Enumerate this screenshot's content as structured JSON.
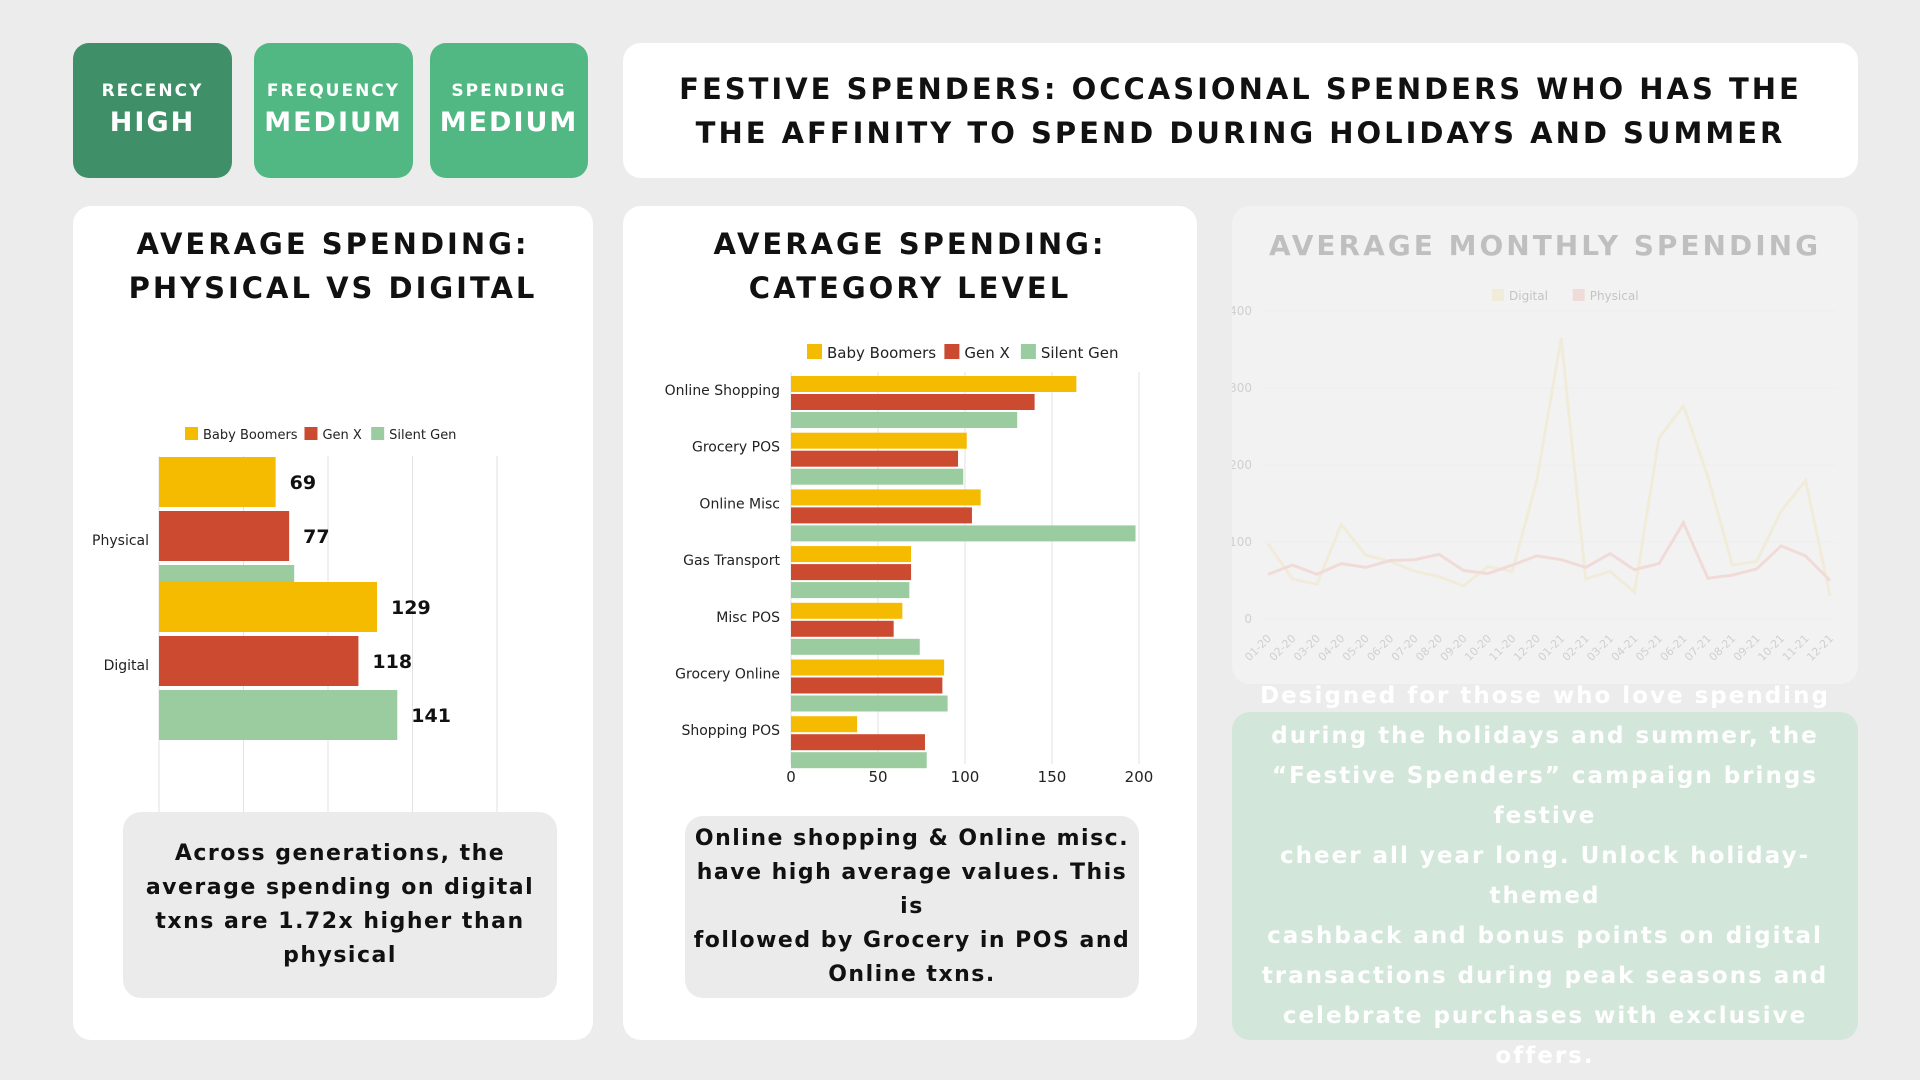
{
  "badges": [
    {
      "label": "RECENCY",
      "value": "HIGH",
      "color": "#3f8f68"
    },
    {
      "label": "FREQUENCY",
      "value": "MEDIUM",
      "color": "#52b883"
    },
    {
      "label": "SPENDING",
      "value": "MEDIUM",
      "color": "#52b883"
    }
  ],
  "header": {
    "line1": "FESTIVE SPENDERS: OCCASIONAL SPENDERS WHO HAS THE",
    "line2": "THE AFFINITY TO SPEND DURING HOLIDAYS AND SUMMER"
  },
  "colors": {
    "baby_boomers": "#f5bb00",
    "gen_x": "#cc4a2f",
    "silent_gen": "#9bcc9f",
    "digital": "#f1d589",
    "physical": "#ef8f80"
  },
  "physical_digital": {
    "title_line1": "AVERAGE SPENDING:",
    "title_line2": "PHYSICAL VS DIGITAL",
    "note": [
      "Across generations, the",
      "average spending on digital",
      "txns are 1.72x higher than",
      "physical"
    ]
  },
  "category_level": {
    "title_line1": "AVERAGE SPENDING:",
    "title_line2": "CATEGORY LEVEL",
    "note": [
      "Online shopping & Online misc.",
      "have high average values. This is",
      "followed by Grocery in POS and",
      "Online txns."
    ]
  },
  "monthly": {
    "title": "AVERAGE MONTHLY SPENDING"
  },
  "promo": {
    "lines": [
      "Designed for those who love spending",
      "during the holidays and summer, the",
      "“Festive Spenders” campaign brings festive",
      "cheer all year long. Unlock holiday-themed",
      "cashback and bonus points on digital",
      "transactions during peak seasons and",
      "celebrate purchases with exclusive offers."
    ]
  },
  "chart_data": [
    {
      "type": "bar",
      "orientation": "horizontal",
      "categories": [
        "Physical",
        "Digital"
      ],
      "series": [
        {
          "name": "Baby Boomers",
          "values": [
            69,
            129
          ]
        },
        {
          "name": "Gen X",
          "values": [
            77,
            118
          ]
        },
        {
          "name": "Silent Gen",
          "values": [
            80,
            141
          ]
        }
      ],
      "xlim": [
        0,
        200
      ],
      "legend": "top",
      "grid": true
    },
    {
      "type": "bar",
      "orientation": "horizontal",
      "categories": [
        "Online Shopping",
        "Grocery POS",
        "Online Misc",
        "Gas Transport",
        "Misc POS",
        "Grocery Online",
        "Shopping POS"
      ],
      "series": [
        {
          "name": "Baby Boomers",
          "values": [
            164,
            101,
            109,
            69,
            64,
            88,
            38
          ]
        },
        {
          "name": "Gen X",
          "values": [
            140,
            96,
            104,
            69,
            59,
            87,
            77
          ]
        },
        {
          "name": "Silent Gen",
          "values": [
            130,
            99,
            198,
            68,
            74,
            90,
            78
          ]
        }
      ],
      "xticks": [
        "0",
        "50",
        "100",
        "150",
        "200"
      ],
      "xlim": [
        0,
        200
      ],
      "legend": "top",
      "grid": true
    },
    {
      "type": "line",
      "x": [
        "01-20",
        "02-20",
        "03-20",
        "04-20",
        "05-20",
        "06-20",
        "07-20",
        "08-20",
        "09-20",
        "10-20",
        "11-20",
        "12-20",
        "01-21",
        "02-21",
        "03-21",
        "04-21",
        "05-21",
        "06-21",
        "07-21",
        "08-21",
        "09-21",
        "10-21",
        "11-21",
        "12-21"
      ],
      "series": [
        {
          "name": "Digital",
          "values": [
            98,
            52,
            45,
            123,
            83,
            75,
            62,
            55,
            43,
            68,
            62,
            180,
            365,
            52,
            62,
            35,
            235,
            277,
            185,
            70,
            75,
            140,
            180,
            30
          ]
        },
        {
          "name": "Physical",
          "values": [
            58,
            70,
            58,
            72,
            67,
            76,
            77,
            84,
            63,
            59,
            70,
            82,
            77,
            67,
            85,
            64,
            72,
            125,
            53,
            57,
            65,
            95,
            82,
            50
          ]
        }
      ],
      "yticks": [
        "0",
        "100",
        "200",
        "300",
        "400"
      ],
      "ylim": [
        0,
        400
      ],
      "legend": "top",
      "grid": true
    }
  ]
}
